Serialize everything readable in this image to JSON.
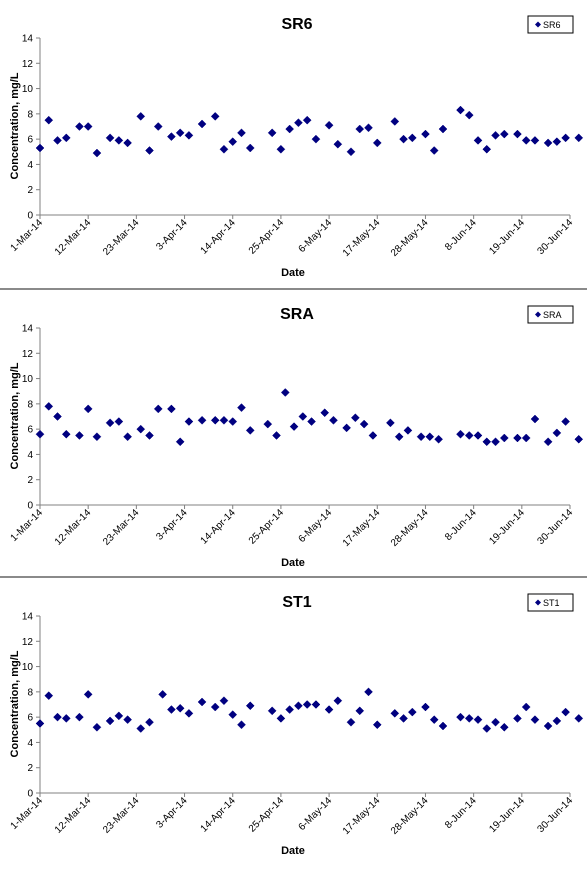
{
  "chart_data": [
    {
      "type": "scatter",
      "title": "SR6",
      "xlabel": "Date",
      "ylabel": "Concentration, mg/L",
      "legend": "top-right",
      "grid": false,
      "ylim": [
        0,
        14
      ],
      "yticks": [
        0,
        2,
        4,
        6,
        8,
        10,
        12,
        14
      ],
      "xlim": [
        "2014-03-01",
        "2014-06-30"
      ],
      "xtick_labels": [
        "1-Mar-14",
        "12-Mar-14",
        "23-Mar-14",
        "3-Apr-14",
        "14-Apr-14",
        "25-Apr-14",
        "6-May-14",
        "17-May-14",
        "28-May-14",
        "8-Jun-14",
        "19-Jun-14",
        "30-Jun-14"
      ],
      "series": [
        {
          "name": "SR6",
          "color": "#000080",
          "marker": "diamond",
          "points": [
            [
              "2014-03-01",
              5.3
            ],
            [
              "2014-03-03",
              7.5
            ],
            [
              "2014-03-05",
              5.9
            ],
            [
              "2014-03-07",
              6.1
            ],
            [
              "2014-03-10",
              7.0
            ],
            [
              "2014-03-12",
              7.0
            ],
            [
              "2014-03-14",
              4.9
            ],
            [
              "2014-03-17",
              6.1
            ],
            [
              "2014-03-19",
              5.9
            ],
            [
              "2014-03-21",
              5.7
            ],
            [
              "2014-03-24",
              7.8
            ],
            [
              "2014-03-26",
              5.1
            ],
            [
              "2014-03-28",
              7.0
            ],
            [
              "2014-03-31",
              6.2
            ],
            [
              "2014-04-02",
              6.5
            ],
            [
              "2014-04-04",
              6.3
            ],
            [
              "2014-04-07",
              7.2
            ],
            [
              "2014-04-10",
              7.8
            ],
            [
              "2014-04-12",
              5.2
            ],
            [
              "2014-04-14",
              5.8
            ],
            [
              "2014-04-16",
              6.5
            ],
            [
              "2014-04-18",
              5.3
            ],
            [
              "2014-04-23",
              6.5
            ],
            [
              "2014-04-25",
              5.2
            ],
            [
              "2014-04-27",
              6.8
            ],
            [
              "2014-04-29",
              7.3
            ],
            [
              "2014-05-01",
              7.5
            ],
            [
              "2014-05-03",
              6.0
            ],
            [
              "2014-05-06",
              7.1
            ],
            [
              "2014-05-08",
              5.6
            ],
            [
              "2014-05-11",
              5.0
            ],
            [
              "2014-05-13",
              6.8
            ],
            [
              "2014-05-15",
              6.9
            ],
            [
              "2014-05-17",
              5.7
            ],
            [
              "2014-05-21",
              7.4
            ],
            [
              "2014-05-23",
              6.0
            ],
            [
              "2014-05-25",
              6.1
            ],
            [
              "2014-05-28",
              6.4
            ],
            [
              "2014-05-30",
              5.1
            ],
            [
              "2014-06-01",
              6.8
            ],
            [
              "2014-06-05",
              8.3
            ],
            [
              "2014-06-07",
              7.9
            ],
            [
              "2014-06-09",
              5.9
            ],
            [
              "2014-06-11",
              5.2
            ],
            [
              "2014-06-13",
              6.3
            ],
            [
              "2014-06-15",
              6.4
            ],
            [
              "2014-06-18",
              6.4
            ],
            [
              "2014-06-20",
              5.9
            ],
            [
              "2014-06-22",
              5.9
            ],
            [
              "2014-06-25",
              5.7
            ],
            [
              "2014-06-27",
              5.8
            ],
            [
              "2014-06-29",
              6.1
            ],
            [
              "2014-07-02",
              6.1
            ]
          ]
        }
      ]
    },
    {
      "type": "scatter",
      "title": "SRA",
      "xlabel": "Date",
      "ylabel": "Concentration, mg/L",
      "legend": "top-right",
      "grid": false,
      "ylim": [
        0,
        14
      ],
      "yticks": [
        0,
        2,
        4,
        6,
        8,
        10,
        12,
        14
      ],
      "xlim": [
        "2014-03-01",
        "2014-06-30"
      ],
      "xtick_labels": [
        "1-Mar-14",
        "12-Mar-14",
        "23-Mar-14",
        "3-Apr-14",
        "14-Apr-14",
        "25-Apr-14",
        "6-May-14",
        "17-May-14",
        "28-May-14",
        "8-Jun-14",
        "19-Jun-14",
        "30-Jun-14"
      ],
      "series": [
        {
          "name": "SRA",
          "color": "#000080",
          "marker": "diamond",
          "points": [
            [
              "2014-03-01",
              5.6
            ],
            [
              "2014-03-03",
              7.8
            ],
            [
              "2014-03-05",
              7.0
            ],
            [
              "2014-03-07",
              5.6
            ],
            [
              "2014-03-10",
              5.5
            ],
            [
              "2014-03-12",
              7.6
            ],
            [
              "2014-03-14",
              5.4
            ],
            [
              "2014-03-17",
              6.5
            ],
            [
              "2014-03-19",
              6.6
            ],
            [
              "2014-03-21",
              5.4
            ],
            [
              "2014-03-24",
              6.0
            ],
            [
              "2014-03-26",
              5.5
            ],
            [
              "2014-03-28",
              7.6
            ],
            [
              "2014-03-31",
              7.6
            ],
            [
              "2014-04-02",
              5.0
            ],
            [
              "2014-04-04",
              6.6
            ],
            [
              "2014-04-07",
              6.7
            ],
            [
              "2014-04-10",
              6.7
            ],
            [
              "2014-04-12",
              6.7
            ],
            [
              "2014-04-14",
              6.6
            ],
            [
              "2014-04-16",
              7.7
            ],
            [
              "2014-04-18",
              5.9
            ],
            [
              "2014-04-22",
              6.4
            ],
            [
              "2014-04-24",
              5.5
            ],
            [
              "2014-04-26",
              8.9
            ],
            [
              "2014-04-28",
              6.2
            ],
            [
              "2014-04-30",
              7.0
            ],
            [
              "2014-05-02",
              6.6
            ],
            [
              "2014-05-05",
              7.3
            ],
            [
              "2014-05-07",
              6.7
            ],
            [
              "2014-05-10",
              6.1
            ],
            [
              "2014-05-12",
              6.9
            ],
            [
              "2014-05-14",
              6.4
            ],
            [
              "2014-05-16",
              5.5
            ],
            [
              "2014-05-20",
              6.5
            ],
            [
              "2014-05-22",
              5.4
            ],
            [
              "2014-05-24",
              5.9
            ],
            [
              "2014-05-27",
              5.4
            ],
            [
              "2014-05-29",
              5.4
            ],
            [
              "2014-05-31",
              5.2
            ],
            [
              "2014-06-05",
              5.6
            ],
            [
              "2014-06-07",
              5.5
            ],
            [
              "2014-06-09",
              5.5
            ],
            [
              "2014-06-11",
              5.0
            ],
            [
              "2014-06-13",
              5.0
            ],
            [
              "2014-06-15",
              5.3
            ],
            [
              "2014-06-18",
              5.3
            ],
            [
              "2014-06-20",
              5.3
            ],
            [
              "2014-06-22",
              6.8
            ],
            [
              "2014-06-25",
              5.0
            ],
            [
              "2014-06-27",
              5.7
            ],
            [
              "2014-06-29",
              6.6
            ],
            [
              "2014-07-02",
              5.2
            ]
          ]
        }
      ]
    },
    {
      "type": "scatter",
      "title": "ST1",
      "xlabel": "Date",
      "ylabel": "Concentration, mg/L",
      "legend": "top-right",
      "grid": false,
      "ylim": [
        0,
        14
      ],
      "yticks": [
        0,
        2,
        4,
        6,
        8,
        10,
        12,
        14
      ],
      "xlim": [
        "2014-03-01",
        "2014-06-30"
      ],
      "xtick_labels": [
        "1-Mar-14",
        "12-Mar-14",
        "23-Mar-14",
        "3-Apr-14",
        "14-Apr-14",
        "25-Apr-14",
        "6-May-14",
        "17-May-14",
        "28-May-14",
        "8-Jun-14",
        "19-Jun-14",
        "30-Jun-14"
      ],
      "series": [
        {
          "name": "ST1",
          "color": "#000080",
          "marker": "diamond",
          "points": [
            [
              "2014-03-01",
              5.5
            ],
            [
              "2014-03-03",
              7.7
            ],
            [
              "2014-03-05",
              6.0
            ],
            [
              "2014-03-07",
              5.9
            ],
            [
              "2014-03-10",
              6.0
            ],
            [
              "2014-03-12",
              7.8
            ],
            [
              "2014-03-14",
              5.2
            ],
            [
              "2014-03-17",
              5.7
            ],
            [
              "2014-03-19",
              6.1
            ],
            [
              "2014-03-21",
              5.8
            ],
            [
              "2014-03-24",
              5.1
            ],
            [
              "2014-03-26",
              5.6
            ],
            [
              "2014-03-29",
              7.8
            ],
            [
              "2014-03-31",
              6.6
            ],
            [
              "2014-04-02",
              6.7
            ],
            [
              "2014-04-04",
              6.3
            ],
            [
              "2014-04-07",
              7.2
            ],
            [
              "2014-04-10",
              6.8
            ],
            [
              "2014-04-12",
              7.3
            ],
            [
              "2014-04-14",
              6.2
            ],
            [
              "2014-04-16",
              5.4
            ],
            [
              "2014-04-18",
              6.9
            ],
            [
              "2014-04-23",
              6.5
            ],
            [
              "2014-04-25",
              5.9
            ],
            [
              "2014-04-27",
              6.6
            ],
            [
              "2014-04-29",
              6.9
            ],
            [
              "2014-05-01",
              7.0
            ],
            [
              "2014-05-03",
              7.0
            ],
            [
              "2014-05-06",
              6.6
            ],
            [
              "2014-05-08",
              7.3
            ],
            [
              "2014-05-11",
              5.6
            ],
            [
              "2014-05-13",
              6.5
            ],
            [
              "2014-05-15",
              8.0
            ],
            [
              "2014-05-17",
              5.4
            ],
            [
              "2014-05-21",
              6.3
            ],
            [
              "2014-05-23",
              5.9
            ],
            [
              "2014-05-25",
              6.4
            ],
            [
              "2014-05-28",
              6.8
            ],
            [
              "2014-05-30",
              5.8
            ],
            [
              "2014-06-01",
              5.3
            ],
            [
              "2014-06-05",
              6.0
            ],
            [
              "2014-06-07",
              5.9
            ],
            [
              "2014-06-09",
              5.8
            ],
            [
              "2014-06-11",
              5.1
            ],
            [
              "2014-06-13",
              5.6
            ],
            [
              "2014-06-15",
              5.2
            ],
            [
              "2014-06-18",
              5.9
            ],
            [
              "2014-06-20",
              6.8
            ],
            [
              "2014-06-22",
              5.8
            ],
            [
              "2014-06-25",
              5.3
            ],
            [
              "2014-06-27",
              5.7
            ],
            [
              "2014-06-29",
              6.4
            ],
            [
              "2014-07-02",
              5.9
            ]
          ]
        }
      ]
    }
  ]
}
